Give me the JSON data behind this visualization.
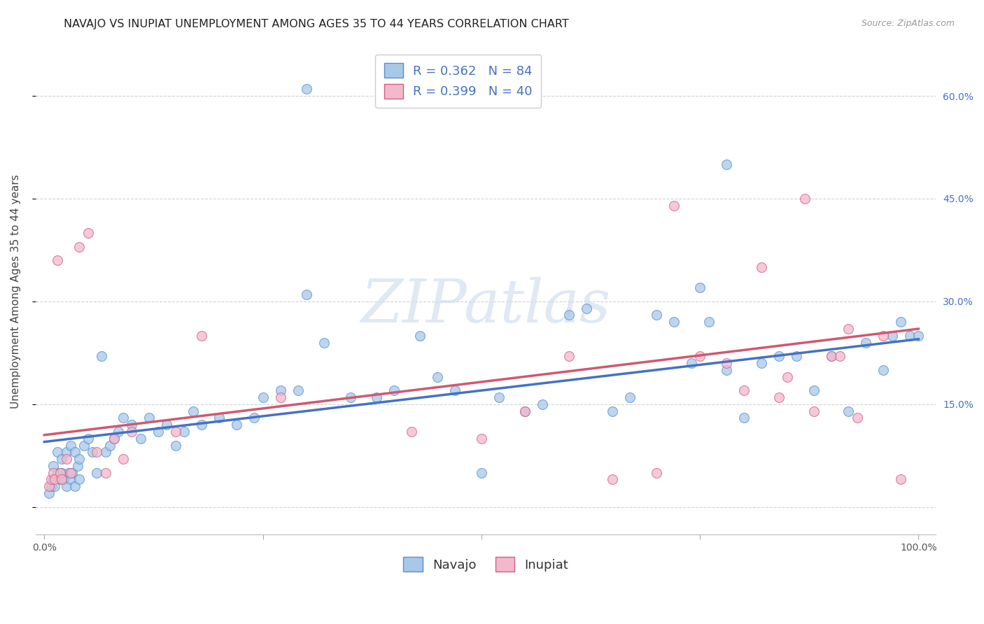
{
  "title": "NAVAJO VS INUPIAT UNEMPLOYMENT AMONG AGES 35 TO 44 YEARS CORRELATION CHART",
  "source": "Source: ZipAtlas.com",
  "ylabel": "Unemployment Among Ages 35 to 44 years",
  "xlim": [
    -0.01,
    1.02
  ],
  "ylim": [
    -0.04,
    0.67
  ],
  "xticks": [
    0.0,
    0.25,
    0.5,
    0.75,
    1.0
  ],
  "xticklabels": [
    "0.0%",
    "",
    "",
    "",
    "100.0%"
  ],
  "yticks": [
    0.0,
    0.15,
    0.3,
    0.45,
    0.6
  ],
  "yticklabels": [
    "",
    "15.0%",
    "30.0%",
    "45.0%",
    "60.0%"
  ],
  "navajo_R": 0.362,
  "navajo_N": 84,
  "inupiat_R": 0.399,
  "inupiat_N": 40,
  "navajo_color": "#a8c8e8",
  "inupiat_color": "#f4b8cc",
  "navajo_edge_color": "#5590d0",
  "inupiat_edge_color": "#d06080",
  "navajo_line_color": "#4472c4",
  "inupiat_line_color": "#d05870",
  "navajo_x": [
    0.005,
    0.008,
    0.01,
    0.012,
    0.015,
    0.018,
    0.02,
    0.022,
    0.025,
    0.028,
    0.03,
    0.032,
    0.035,
    0.038,
    0.04,
    0.01,
    0.015,
    0.02,
    0.025,
    0.03,
    0.035,
    0.04,
    0.045,
    0.05,
    0.055,
    0.06,
    0.065,
    0.07,
    0.075,
    0.08,
    0.085,
    0.09,
    0.1,
    0.11,
    0.12,
    0.13,
    0.14,
    0.15,
    0.16,
    0.17,
    0.18,
    0.2,
    0.22,
    0.24,
    0.25,
    0.27,
    0.29,
    0.3,
    0.32,
    0.35,
    0.38,
    0.4,
    0.43,
    0.45,
    0.47,
    0.5,
    0.52,
    0.55,
    0.57,
    0.6,
    0.62,
    0.65,
    0.67,
    0.7,
    0.72,
    0.74,
    0.76,
    0.78,
    0.8,
    0.82,
    0.84,
    0.86,
    0.88,
    0.9,
    0.92,
    0.94,
    0.96,
    0.97,
    0.98,
    0.99,
    1.0,
    0.3,
    0.78,
    0.75
  ],
  "navajo_y": [
    0.02,
    0.03,
    0.04,
    0.03,
    0.05,
    0.04,
    0.05,
    0.04,
    0.03,
    0.05,
    0.04,
    0.05,
    0.03,
    0.06,
    0.04,
    0.06,
    0.08,
    0.07,
    0.08,
    0.09,
    0.08,
    0.07,
    0.09,
    0.1,
    0.08,
    0.05,
    0.22,
    0.08,
    0.09,
    0.1,
    0.11,
    0.13,
    0.12,
    0.1,
    0.13,
    0.11,
    0.12,
    0.09,
    0.11,
    0.14,
    0.12,
    0.13,
    0.12,
    0.13,
    0.16,
    0.17,
    0.17,
    0.31,
    0.24,
    0.16,
    0.16,
    0.17,
    0.25,
    0.19,
    0.17,
    0.05,
    0.16,
    0.14,
    0.15,
    0.28,
    0.29,
    0.14,
    0.16,
    0.28,
    0.27,
    0.21,
    0.27,
    0.2,
    0.13,
    0.21,
    0.22,
    0.22,
    0.17,
    0.22,
    0.14,
    0.24,
    0.2,
    0.25,
    0.27,
    0.25,
    0.25,
    0.61,
    0.5,
    0.32
  ],
  "inupiat_x": [
    0.005,
    0.008,
    0.01,
    0.012,
    0.015,
    0.018,
    0.02,
    0.025,
    0.03,
    0.04,
    0.05,
    0.06,
    0.07,
    0.08,
    0.09,
    0.1,
    0.15,
    0.18,
    0.27,
    0.42,
    0.5,
    0.55,
    0.6,
    0.65,
    0.7,
    0.72,
    0.75,
    0.78,
    0.8,
    0.82,
    0.84,
    0.85,
    0.87,
    0.88,
    0.9,
    0.91,
    0.92,
    0.93,
    0.96,
    0.98
  ],
  "inupiat_y": [
    0.03,
    0.04,
    0.05,
    0.04,
    0.36,
    0.05,
    0.04,
    0.07,
    0.05,
    0.38,
    0.4,
    0.08,
    0.05,
    0.1,
    0.07,
    0.11,
    0.11,
    0.25,
    0.16,
    0.11,
    0.1,
    0.14,
    0.22,
    0.04,
    0.05,
    0.44,
    0.22,
    0.21,
    0.17,
    0.35,
    0.16,
    0.19,
    0.45,
    0.14,
    0.22,
    0.22,
    0.26,
    0.13,
    0.25,
    0.04
  ],
  "navajo_trend_y_start": 0.095,
  "navajo_trend_y_end": 0.245,
  "inupiat_trend_y_start": 0.105,
  "inupiat_trend_y_end": 0.26,
  "watermark": "ZIPatlas",
  "background_color": "#ffffff",
  "grid_color": "#cccccc",
  "title_fontsize": 11.5,
  "axis_label_fontsize": 11,
  "tick_fontsize": 10,
  "legend_fontsize": 13,
  "marker_size": 100,
  "marker_alpha": 0.75
}
